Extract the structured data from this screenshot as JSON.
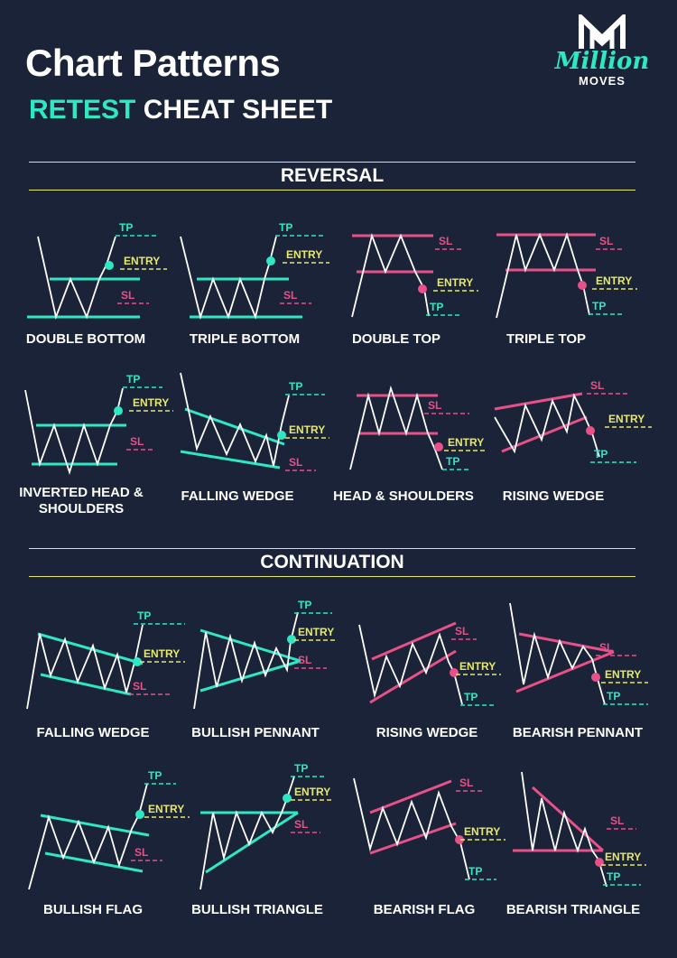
{
  "header": {
    "title": "Chart Patterns",
    "subtitle_accent": "RETEST",
    "subtitle_rest": " CHEAT SHEET"
  },
  "brand": {
    "script": "Million",
    "sub": "MOVES"
  },
  "sections": {
    "reversal": "REVERSAL",
    "continuation": "CONTINUATION"
  },
  "markers": {
    "tp": "TP",
    "sl": "SL",
    "entry": "ENTRY"
  },
  "colors": {
    "background": "#1a2337",
    "bullish": "#2ee8c4",
    "bearish": "#e8508a",
    "entry": "#e6e86a",
    "band": "#e6e86a",
    "text": "#ffffff"
  },
  "patterns": [
    {
      "name": "DOUBLE BOTTOM",
      "section": "reversal",
      "bias": "bullish"
    },
    {
      "name": "TRIPLE BOTTOM",
      "section": "reversal",
      "bias": "bullish"
    },
    {
      "name": "DOUBLE TOP",
      "section": "reversal",
      "bias": "bearish"
    },
    {
      "name": "TRIPLE TOP",
      "section": "reversal",
      "bias": "bearish"
    },
    {
      "name": "INVERTED HEAD & SHOULDERS",
      "section": "reversal",
      "bias": "bullish"
    },
    {
      "name": "FALLING WEDGE",
      "section": "reversal",
      "bias": "bullish"
    },
    {
      "name": "HEAD & SHOULDERS",
      "section": "reversal",
      "bias": "bearish"
    },
    {
      "name": "RISING WEDGE",
      "section": "reversal",
      "bias": "bearish"
    },
    {
      "name": "FALLING WEDGE",
      "section": "continuation",
      "bias": "bullish"
    },
    {
      "name": "BULLISH PENNANT",
      "section": "continuation",
      "bias": "bullish"
    },
    {
      "name": "RISING WEDGE",
      "section": "continuation",
      "bias": "bearish"
    },
    {
      "name": "BEARISH PENNANT",
      "section": "continuation",
      "bias": "bearish"
    },
    {
      "name": "BULLISH FLAG",
      "section": "continuation",
      "bias": "bullish"
    },
    {
      "name": "BULLISH TRIANGLE",
      "section": "continuation",
      "bias": "bullish"
    },
    {
      "name": "BEARISH FLAG",
      "section": "continuation",
      "bias": "bearish"
    },
    {
      "name": "BEARISH TRIANGLE",
      "section": "continuation",
      "bias": "bearish"
    }
  ]
}
